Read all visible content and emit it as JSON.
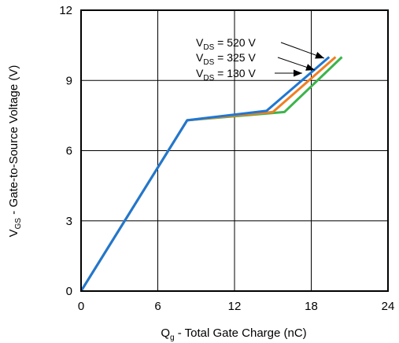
{
  "chart_data": {
    "type": "line",
    "xlabel": {
      "main": "Q",
      "sub": "g",
      "rest": " - Total Gate Charge (nC)"
    },
    "ylabel": {
      "main": "V",
      "sub": "GS",
      "rest": " - Gate-to-Source Voltage (V)"
    },
    "xlim": [
      0,
      24
    ],
    "ylim": [
      0,
      12
    ],
    "xticks": [
      0,
      6,
      12,
      18,
      24
    ],
    "yticks": [
      0,
      3,
      6,
      9,
      12
    ],
    "grid": true,
    "series": [
      {
        "name": {
          "main": "V",
          "sub": "DS",
          "rest": " = 520 V"
        },
        "color": "#1f77d4",
        "points": [
          [
            0,
            0
          ],
          [
            8.3,
            7.3
          ],
          [
            14.5,
            7.7
          ],
          [
            19.4,
            10.0
          ]
        ]
      },
      {
        "name": {
          "main": "V",
          "sub": "DS",
          "rest": " = 325 V"
        },
        "color": "#f07f22",
        "points": [
          [
            0,
            0
          ],
          [
            8.3,
            7.3
          ],
          [
            15.0,
            7.65
          ],
          [
            19.9,
            10.0
          ]
        ]
      },
      {
        "name": {
          "main": "V",
          "sub": "DS",
          "rest": " = 130 V"
        },
        "color": "#3cb44b",
        "points": [
          [
            0,
            0
          ],
          [
            8.3,
            7.3
          ],
          [
            15.9,
            7.65
          ],
          [
            20.4,
            10.0
          ]
        ]
      }
    ]
  }
}
